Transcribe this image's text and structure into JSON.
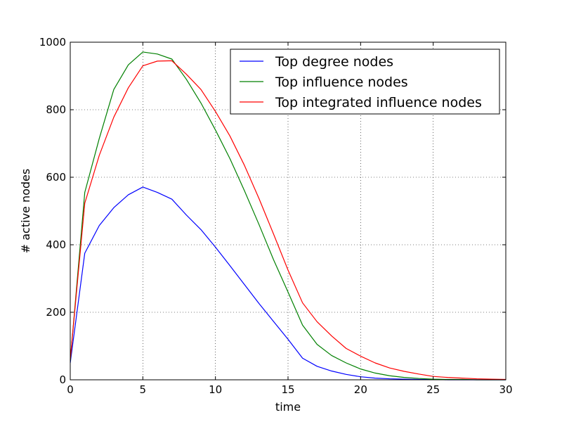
{
  "chart_data": {
    "type": "line",
    "title": "",
    "xlabel": "time",
    "ylabel": "# active nodes",
    "xlim": [
      0,
      30
    ],
    "ylim": [
      0,
      1000
    ],
    "xticks": [
      0,
      5,
      10,
      15,
      20,
      25,
      30
    ],
    "yticks": [
      0,
      200,
      400,
      600,
      800,
      1000
    ],
    "grid": true,
    "legend_position": "top-right",
    "series": [
      {
        "name": "Top degree nodes",
        "color": "#0000ff",
        "x": [
          0,
          1,
          2,
          3,
          4,
          5,
          6,
          7,
          8,
          9,
          10,
          11,
          12,
          13,
          14,
          15,
          16,
          17,
          18,
          19,
          20,
          21,
          22,
          23,
          24,
          25,
          26,
          27,
          28,
          29,
          30
        ],
        "values": [
          50,
          375,
          457,
          510,
          548,
          571,
          555,
          535,
          488,
          445,
          393,
          338,
          282,
          226,
          173,
          120,
          64,
          40,
          26,
          16,
          9,
          5,
          3,
          2,
          1,
          1,
          0,
          0,
          0,
          0,
          0
        ]
      },
      {
        "name": "Top influence nodes",
        "color": "#008000",
        "x": [
          0,
          1,
          2,
          3,
          4,
          5,
          6,
          7,
          8,
          9,
          10,
          11,
          12,
          13,
          14,
          15,
          16,
          17,
          18,
          19,
          20,
          21,
          22,
          23,
          24,
          25,
          26,
          27,
          28,
          29,
          30
        ],
        "values": [
          55,
          555,
          715,
          860,
          933,
          971,
          965,
          950,
          890,
          820,
          740,
          655,
          560,
          460,
          356,
          260,
          162,
          105,
          72,
          50,
          32,
          20,
          12,
          7,
          4,
          2,
          1,
          1,
          0,
          0,
          0
        ]
      },
      {
        "name": "Top integrated influence nodes",
        "color": "#ff0000",
        "x": [
          0,
          1,
          2,
          3,
          4,
          5,
          6,
          7,
          8,
          9,
          10,
          11,
          12,
          13,
          14,
          15,
          16,
          17,
          18,
          19,
          20,
          21,
          22,
          23,
          24,
          25,
          26,
          27,
          28,
          29,
          30
        ],
        "values": [
          60,
          523,
          665,
          778,
          865,
          930,
          944,
          945,
          905,
          860,
          795,
          722,
          635,
          537,
          432,
          325,
          228,
          172,
          130,
          93,
          70,
          50,
          35,
          25,
          17,
          10,
          7,
          5,
          3,
          2,
          1
        ]
      }
    ]
  }
}
